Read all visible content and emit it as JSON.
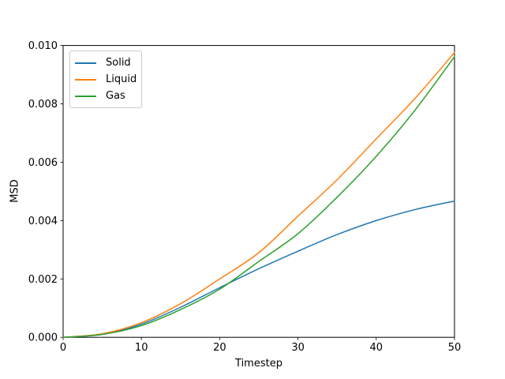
{
  "figure": {
    "background": "#ffffff",
    "axis_color": "#000000",
    "legend_border_color": "#cccccc"
  },
  "chart_data": {
    "type": "line",
    "title": "",
    "xlabel": "Timestep",
    "ylabel": "MSD",
    "xlim": [
      0,
      50
    ],
    "ylim": [
      0,
      0.01
    ],
    "grid": false,
    "legend": {
      "position": "upper-left",
      "entries": [
        "Solid",
        "Liquid",
        "Gas"
      ]
    },
    "x_ticks": [
      {
        "v": 0,
        "label": "0"
      },
      {
        "v": 10,
        "label": "10"
      },
      {
        "v": 20,
        "label": "20"
      },
      {
        "v": 30,
        "label": "30"
      },
      {
        "v": 40,
        "label": "40"
      },
      {
        "v": 50,
        "label": "50"
      }
    ],
    "y_ticks": [
      {
        "v": 0.0,
        "label": "0.000"
      },
      {
        "v": 0.002,
        "label": "0.002"
      },
      {
        "v": 0.004,
        "label": "0.004"
      },
      {
        "v": 0.006,
        "label": "0.006"
      },
      {
        "v": 0.008,
        "label": "0.008"
      },
      {
        "v": 0.01,
        "label": "0.010"
      }
    ],
    "x": [
      0,
      5,
      10,
      15,
      20,
      25,
      30,
      35,
      40,
      45,
      50
    ],
    "series": [
      {
        "name": "Solid",
        "color": "#1f77b4",
        "values": [
          0.0,
          0.0001,
          0.00045,
          0.00103,
          0.0017,
          0.00235,
          0.00295,
          0.00352,
          0.004,
          0.00438,
          0.00467
        ]
      },
      {
        "name": "Liquid",
        "color": "#ff7f0e",
        "values": [
          0.0,
          0.00012,
          0.0005,
          0.00115,
          0.002,
          0.0029,
          0.00415,
          0.0054,
          0.0068,
          0.0082,
          0.00976
        ]
      },
      {
        "name": "Gas",
        "color": "#2ca02c",
        "values": [
          0.0,
          0.0001,
          0.0004,
          0.00095,
          0.00165,
          0.0026,
          0.00355,
          0.0048,
          0.0062,
          0.0078,
          0.00962
        ]
      }
    ]
  }
}
